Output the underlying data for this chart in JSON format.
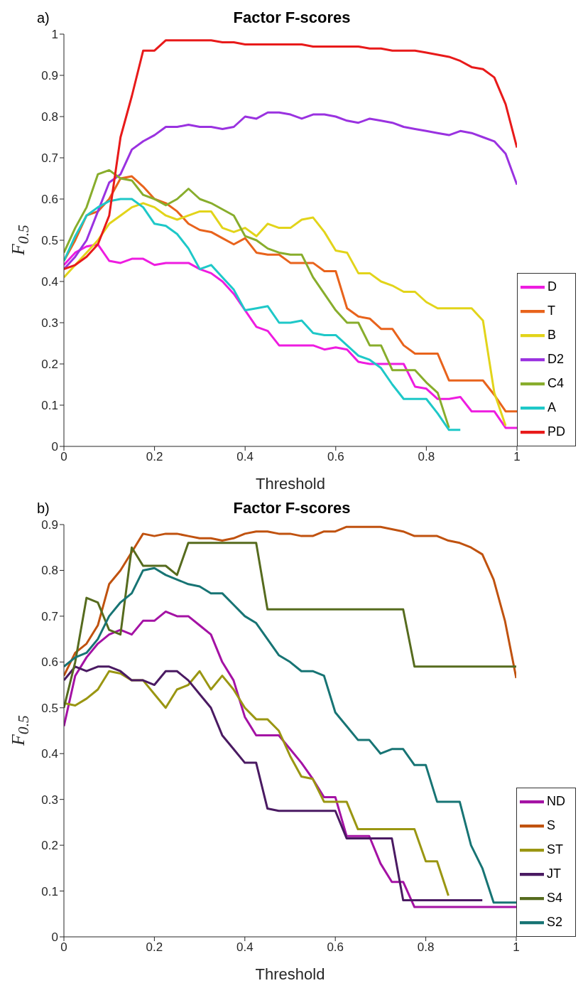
{
  "chart_data": [
    {
      "type": "line",
      "title": "Factor F-scores",
      "xlabel": "Threshold",
      "ylabel": "F$_{0.5}$",
      "annotations": [
        "a)"
      ],
      "legend": "bottom right",
      "xlim": [
        0,
        1
      ],
      "xticks": [
        0,
        0.2,
        0.4,
        0.6,
        0.8,
        1
      ],
      "ylim": [
        0,
        1
      ],
      "yticks": [
        0,
        0.1,
        0.2,
        0.3,
        0.4,
        0.5,
        0.6,
        0.7,
        0.8,
        0.9,
        1
      ],
      "x": [
        0,
        0.025,
        0.05,
        0.075,
        0.1,
        0.125,
        0.15,
        0.175,
        0.2,
        0.225,
        0.25,
        0.275,
        0.3,
        0.325,
        0.35,
        0.375,
        0.4,
        0.425,
        0.45,
        0.475,
        0.5,
        0.525,
        0.55,
        0.575,
        0.6,
        0.625,
        0.65,
        0.675,
        0.7,
        0.725,
        0.75,
        0.775,
        0.8,
        0.825,
        0.85,
        0.875,
        0.9,
        0.925,
        0.95,
        0.975,
        1
      ],
      "series": [
        {
          "name": "D",
          "color": "#ee1ce0",
          "values": [
            0.44,
            0.47,
            0.485,
            0.49,
            0.45,
            0.445,
            0.455,
            0.455,
            0.44,
            0.445,
            0.445,
            0.445,
            0.43,
            0.42,
            0.4,
            0.37,
            0.33,
            0.29,
            0.28,
            0.245,
            0.245,
            0.245,
            0.245,
            0.235,
            0.24,
            0.235,
            0.205,
            0.2,
            0.2,
            0.2,
            0.2,
            0.145,
            0.14,
            0.115,
            0.115,
            0.12,
            0.085,
            0.085,
            0.085,
            0.045,
            0.045
          ]
        },
        {
          "name": "T",
          "color": "#e8631c",
          "values": [
            0.45,
            0.5,
            0.56,
            0.57,
            0.6,
            0.65,
            0.655,
            0.63,
            0.6,
            0.59,
            0.57,
            0.54,
            0.525,
            0.52,
            0.505,
            0.49,
            0.505,
            0.47,
            0.465,
            0.465,
            0.445,
            0.445,
            0.445,
            0.425,
            0.425,
            0.335,
            0.315,
            0.31,
            0.285,
            0.285,
            0.245,
            0.225,
            0.225,
            0.225,
            0.16,
            0.16,
            0.16,
            0.16,
            0.125,
            0.085,
            0.085
          ]
        },
        {
          "name": "B",
          "color": "#e2d41a",
          "values": [
            0.41,
            0.44,
            0.47,
            0.5,
            0.54,
            0.56,
            0.58,
            0.59,
            0.58,
            0.56,
            0.55,
            0.56,
            0.57,
            0.57,
            0.53,
            0.52,
            0.53,
            0.51,
            0.54,
            0.53,
            0.53,
            0.55,
            0.555,
            0.52,
            0.475,
            0.47,
            0.42,
            0.42,
            0.4,
            0.39,
            0.375,
            0.375,
            0.35,
            0.335,
            0.335,
            0.335,
            0.335,
            0.305,
            0.13,
            0.05,
            null
          ]
        },
        {
          "name": "D2",
          "color": "#9a32e0",
          "values": [
            0.43,
            0.46,
            0.5,
            0.57,
            0.64,
            0.66,
            0.72,
            0.74,
            0.755,
            0.775,
            0.775,
            0.78,
            0.775,
            0.775,
            0.77,
            0.775,
            0.8,
            0.795,
            0.81,
            0.81,
            0.805,
            0.795,
            0.805,
            0.805,
            0.8,
            0.79,
            0.785,
            0.795,
            0.79,
            0.785,
            0.775,
            0.77,
            0.765,
            0.76,
            0.755,
            0.765,
            0.76,
            0.75,
            0.74,
            0.71,
            0.635
          ]
        },
        {
          "name": "C4",
          "color": "#88ad2c",
          "values": [
            0.47,
            0.53,
            0.58,
            0.66,
            0.67,
            0.65,
            0.645,
            0.61,
            0.6,
            0.585,
            0.6,
            0.625,
            0.6,
            0.59,
            0.575,
            0.56,
            0.51,
            0.5,
            0.48,
            0.47,
            0.465,
            0.465,
            0.41,
            0.37,
            0.33,
            0.3,
            0.3,
            0.245,
            0.245,
            0.185,
            0.185,
            0.185,
            0.155,
            0.13,
            0.045,
            null,
            null,
            null,
            null,
            null,
            null
          ]
        },
        {
          "name": "A",
          "color": "#1ec8c8",
          "values": [
            0.45,
            0.51,
            0.56,
            0.58,
            0.595,
            0.6,
            0.6,
            0.58,
            0.54,
            0.535,
            0.515,
            0.48,
            0.43,
            0.44,
            0.41,
            0.38,
            0.33,
            0.335,
            0.34,
            0.3,
            0.3,
            0.305,
            0.275,
            0.27,
            0.27,
            0.245,
            0.22,
            0.21,
            0.19,
            0.15,
            0.115,
            0.115,
            0.115,
            0.08,
            0.04,
            0.04,
            null,
            null,
            null,
            null,
            null
          ]
        },
        {
          "name": "PD",
          "color": "#e81a1a",
          "values": [
            0.43,
            0.44,
            0.46,
            0.49,
            0.56,
            0.75,
            0.85,
            0.96,
            0.96,
            0.985,
            0.985,
            0.985,
            0.985,
            0.985,
            0.98,
            0.98,
            0.975,
            0.975,
            0.975,
            0.975,
            0.975,
            0.975,
            0.97,
            0.97,
            0.97,
            0.97,
            0.97,
            0.965,
            0.965,
            0.96,
            0.96,
            0.96,
            0.955,
            0.95,
            0.945,
            0.935,
            0.92,
            0.915,
            0.895,
            0.83,
            0.725
          ]
        }
      ]
    },
    {
      "type": "line",
      "title": "Factor F-scores",
      "xlabel": "Threshold",
      "ylabel": "F$_{0.5}$",
      "annotations": [
        "b)"
      ],
      "legend": "bottom right",
      "xlim": [
        0,
        1
      ],
      "xticks": [
        0,
        0.2,
        0.4,
        0.6,
        0.8,
        1
      ],
      "ylim": [
        0,
        0.9
      ],
      "yticks": [
        0,
        0.1,
        0.2,
        0.3,
        0.4,
        0.5,
        0.6,
        0.7,
        0.8,
        0.9
      ],
      "x": [
        0,
        0.025,
        0.05,
        0.075,
        0.1,
        0.125,
        0.15,
        0.175,
        0.2,
        0.225,
        0.25,
        0.275,
        0.3,
        0.325,
        0.35,
        0.375,
        0.4,
        0.425,
        0.45,
        0.475,
        0.5,
        0.525,
        0.55,
        0.575,
        0.6,
        0.625,
        0.65,
        0.675,
        0.7,
        0.725,
        0.75,
        0.775,
        0.8,
        0.825,
        0.85,
        0.875,
        0.9,
        0.925,
        0.95,
        0.975,
        1
      ],
      "series": [
        {
          "name": "ND",
          "color": "#a412a4",
          "values": [
            0.46,
            0.57,
            0.61,
            0.64,
            0.66,
            0.67,
            0.66,
            0.69,
            0.69,
            0.71,
            0.7,
            0.7,
            0.68,
            0.66,
            0.6,
            0.56,
            0.48,
            0.44,
            0.44,
            0.44,
            0.41,
            0.38,
            0.345,
            0.305,
            0.305,
            0.22,
            0.22,
            0.22,
            0.16,
            0.12,
            0.12,
            0.065,
            0.065,
            0.065,
            0.065,
            0.065,
            0.065,
            0.065,
            0.065,
            0.065,
            0.065
          ]
        },
        {
          "name": "S",
          "color": "#c0520f",
          "values": [
            0.57,
            0.62,
            0.64,
            0.68,
            0.77,
            0.8,
            0.84,
            0.88,
            0.875,
            0.88,
            0.88,
            0.875,
            0.87,
            0.87,
            0.865,
            0.87,
            0.88,
            0.885,
            0.885,
            0.88,
            0.88,
            0.875,
            0.875,
            0.885,
            0.885,
            0.895,
            0.895,
            0.895,
            0.895,
            0.89,
            0.885,
            0.875,
            0.875,
            0.875,
            0.865,
            0.86,
            0.85,
            0.835,
            0.78,
            0.69,
            0.565
          ]
        },
        {
          "name": "ST",
          "color": "#9a9612",
          "values": [
            0.51,
            0.505,
            0.52,
            0.54,
            0.58,
            0.575,
            0.56,
            0.56,
            0.53,
            0.5,
            0.54,
            0.55,
            0.58,
            0.54,
            0.57,
            0.54,
            0.5,
            0.475,
            0.475,
            0.45,
            0.395,
            0.35,
            0.345,
            0.295,
            0.295,
            0.295,
            0.235,
            0.235,
            0.235,
            0.235,
            0.235,
            0.235,
            0.165,
            0.165,
            0.09,
            null,
            null,
            null,
            null,
            null,
            null
          ]
        },
        {
          "name": "JT",
          "color": "#4a1a62",
          "values": [
            0.56,
            0.59,
            0.58,
            0.59,
            0.59,
            0.58,
            0.56,
            0.56,
            0.55,
            0.58,
            0.58,
            0.56,
            0.53,
            0.5,
            0.44,
            0.41,
            0.38,
            0.38,
            0.28,
            0.275,
            0.275,
            0.275,
            0.275,
            0.275,
            0.275,
            0.215,
            0.215,
            0.215,
            0.215,
            0.215,
            0.08,
            0.08,
            0.08,
            0.08,
            0.08,
            0.08,
            0.08,
            0.08,
            null,
            null,
            null
          ]
        },
        {
          "name": "S4",
          "color": "#566b1e",
          "values": [
            0.5,
            0.6,
            0.74,
            0.73,
            0.67,
            0.66,
            0.85,
            0.81,
            0.81,
            0.81,
            0.79,
            0.86,
            0.86,
            0.86,
            0.86,
            0.86,
            0.86,
            0.86,
            0.715,
            0.715,
            0.715,
            0.715,
            0.715,
            0.715,
            0.715,
            0.715,
            0.715,
            0.715,
            0.715,
            0.715,
            0.715,
            0.59,
            0.59,
            0.59,
            0.59,
            0.59,
            0.59,
            0.59,
            0.59,
            0.59,
            0.59
          ]
        },
        {
          "name": "S2",
          "color": "#177474",
          "values": [
            0.59,
            0.61,
            0.62,
            0.65,
            0.7,
            0.73,
            0.75,
            0.8,
            0.805,
            0.79,
            0.78,
            0.77,
            0.765,
            0.75,
            0.75,
            0.725,
            0.7,
            0.685,
            0.65,
            0.615,
            0.6,
            0.58,
            0.58,
            0.57,
            0.49,
            0.46,
            0.43,
            0.43,
            0.4,
            0.41,
            0.41,
            0.375,
            0.375,
            0.295,
            0.295,
            0.295,
            0.2,
            0.15,
            0.075,
            0.075,
            0.075
          ]
        }
      ]
    }
  ]
}
